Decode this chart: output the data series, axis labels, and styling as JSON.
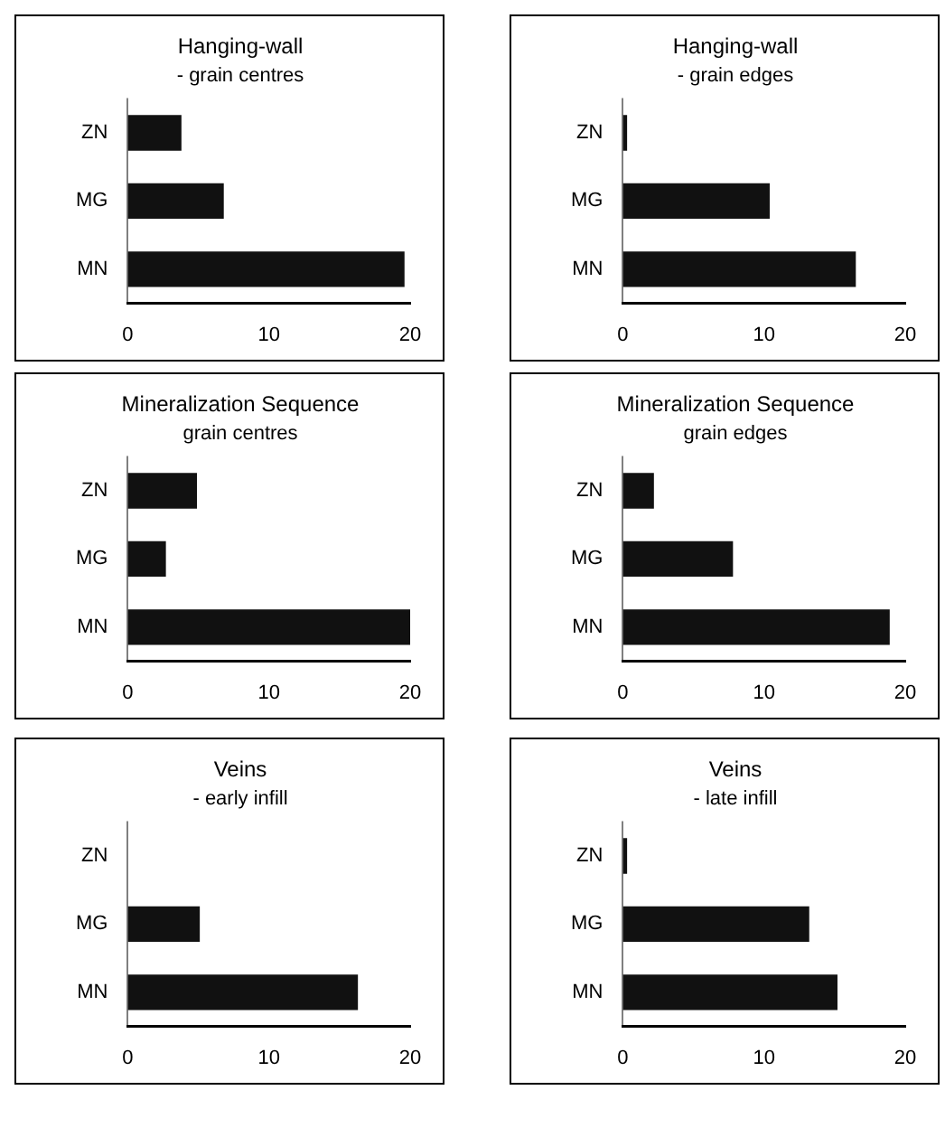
{
  "chart_data": [
    {
      "type": "bar",
      "orientation": "horizontal",
      "title": "Hanging-wall",
      "subtitle": "- grain centres",
      "categories": [
        "ZN",
        "MG",
        "MN"
      ],
      "values": [
        3.8,
        6.8,
        19.6
      ],
      "color": "#111111",
      "xlim": [
        0,
        20
      ],
      "xticks": [
        0,
        10,
        20
      ],
      "grid": false,
      "legend": false
    },
    {
      "type": "bar",
      "orientation": "horizontal",
      "title": "Hanging-wall",
      "subtitle": "- grain edges",
      "categories": [
        "ZN",
        "MG",
        "MN"
      ],
      "values": [
        0.3,
        10.4,
        16.5
      ],
      "color": "#111111",
      "xlim": [
        0,
        20
      ],
      "xticks": [
        0,
        10,
        20
      ],
      "grid": false,
      "legend": false
    },
    {
      "type": "bar",
      "orientation": "horizontal",
      "title": "Mineralization Sequence",
      "subtitle": "grain centres",
      "categories": [
        "ZN",
        "MG",
        "MN"
      ],
      "values": [
        4.9,
        2.7,
        20
      ],
      "color": "#111111",
      "xlim": [
        0,
        20
      ],
      "xticks": [
        0,
        10,
        20
      ],
      "grid": false,
      "legend": false
    },
    {
      "type": "bar",
      "orientation": "horizontal",
      "title": "Mineralization Sequence",
      "subtitle": "grain edges",
      "categories": [
        "ZN",
        "MG",
        "MN"
      ],
      "values": [
        2.2,
        7.8,
        18.9
      ],
      "color": "#111111",
      "xlim": [
        0,
        20
      ],
      "xticks": [
        0,
        10,
        20
      ],
      "grid": false,
      "legend": false
    },
    {
      "type": "bar",
      "orientation": "horizontal",
      "title": "Veins",
      "subtitle": "- early infill",
      "categories": [
        "ZN",
        "MG",
        "MN"
      ],
      "values": [
        0,
        5.1,
        16.3
      ],
      "color": "#111111",
      "xlim": [
        0,
        20
      ],
      "xticks": [
        0,
        10,
        20
      ],
      "grid": false,
      "legend": false
    },
    {
      "type": "bar",
      "orientation": "horizontal",
      "title": "Veins",
      "subtitle": "- late infill",
      "categories": [
        "ZN",
        "MG",
        "MN"
      ],
      "values": [
        0.3,
        13.2,
        15.2
      ],
      "color": "#111111",
      "xlim": [
        0,
        20
      ],
      "xticks": [
        0,
        10,
        20
      ],
      "grid": false,
      "legend": false
    }
  ]
}
